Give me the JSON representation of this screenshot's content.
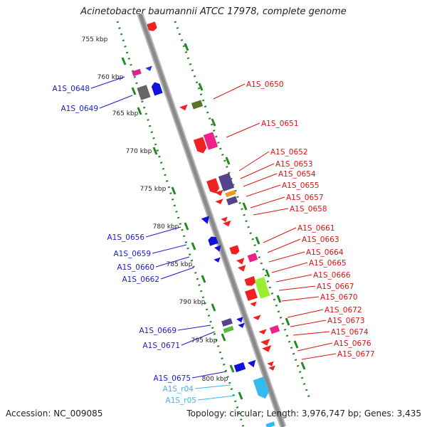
{
  "title": "Acinetobacter baumannii ATCC 17978, complete genome",
  "accession": "Accession: NC_009085",
  "summary": "Topology: circular; Length: 3,976,747 bp; Genes: 3,435",
  "colors": {
    "backbone": "#8a8a8a",
    "reverse_strand_feature": "#ee0000",
    "forward_strand_feature": "#0000ee",
    "rna_feature": "#33bbee",
    "ruler_tick": "#228822"
  },
  "scale_ticks": [
    "755 kbp",
    "760 kbp",
    "765 kbp",
    "770 kbp",
    "775 kbp",
    "780 kbp",
    "785 kbp",
    "790 kbp",
    "795 kbp",
    "800 kbp"
  ],
  "left_labels": [
    {
      "text": "A1S_0648",
      "kind": "gene"
    },
    {
      "text": "A1S_0649",
      "kind": "gene"
    },
    {
      "text": "A1S_0656",
      "kind": "gene"
    },
    {
      "text": "A1S_0659",
      "kind": "gene"
    },
    {
      "text": "A1S_0660",
      "kind": "gene"
    },
    {
      "text": "A1S_0662",
      "kind": "gene"
    },
    {
      "text": "A1S_0669",
      "kind": "gene"
    },
    {
      "text": "A1S_0671",
      "kind": "gene"
    },
    {
      "text": "A1S_0675",
      "kind": "gene"
    },
    {
      "text": "A1S_r04",
      "kind": "rna"
    },
    {
      "text": "A1S_r05",
      "kind": "rna"
    }
  ],
  "right_labels": [
    "A1S_0650",
    "A1S_0651",
    "A1S_0652",
    "A1S_0653",
    "A1S_0654",
    "A1S_0655",
    "A1S_0657",
    "A1S_0658",
    "A1S_0661",
    "A1S_0663",
    "A1S_0664",
    "A1S_0665",
    "A1S_0666",
    "A1S_0667",
    "A1S_0670",
    "A1S_0672",
    "A1S_0673",
    "A1S_0674",
    "A1S_0676",
    "A1S_0677"
  ]
}
